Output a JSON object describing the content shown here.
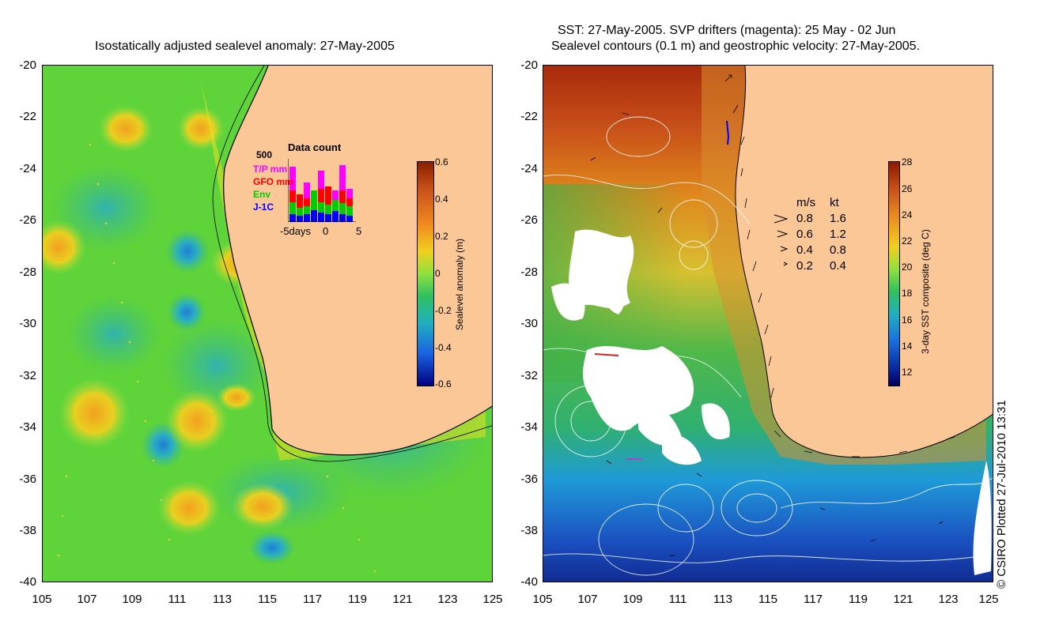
{
  "left_panel": {
    "title": "Isostatically adjusted sealevel anomaly: 27-May-2005",
    "y_ticks": [
      "-20",
      "-22",
      "-24",
      "-26",
      "-28",
      "-30",
      "-32",
      "-34",
      "-36",
      "-38",
      "-40"
    ],
    "x_ticks": [
      "105",
      "107",
      "109",
      "111",
      "113",
      "115",
      "117",
      "119",
      "121",
      "123",
      "125"
    ],
    "colorbar": {
      "label": "Sealevel anomaly (m)",
      "ticks": [
        "0.6",
        "0.4",
        "0.2",
        "0",
        "-0.2",
        "-0.4",
        "-0.6"
      ]
    },
    "data_count": {
      "title": "Data count",
      "max_label": "500",
      "x_labels": [
        "-5days",
        "0",
        "5"
      ],
      "legend": [
        {
          "label": "T/P mm",
          "color": "#ff00ff"
        },
        {
          "label": "GFO mm",
          "color": "#ff0000"
        },
        {
          "label": "Env",
          "color": "#00cc00"
        },
        {
          "label": "J-1C",
          "color": "#0000ff"
        }
      ]
    }
  },
  "right_panel": {
    "title_line1": "SST: 27-May-2005. SVP drifters (magenta): 25 May - 02 Jun",
    "title_line2": "Sealevel contours (0.1 m) and geostrophic velocity: 27-May-2005.",
    "y_ticks": [
      "-20",
      "-22",
      "-24",
      "-26",
      "-28",
      "-30",
      "-32",
      "-34",
      "-36",
      "-38",
      "-40"
    ],
    "x_ticks": [
      "105",
      "107",
      "109",
      "111",
      "113",
      "115",
      "117",
      "119",
      "121",
      "123",
      "125"
    ],
    "colorbar": {
      "label": "3-day SST composite (deg C)",
      "ticks": [
        "28",
        "26",
        "24",
        "22",
        "20",
        "18",
        "16",
        "14",
        "12"
      ]
    },
    "velocity_legend": {
      "header_ms": "m/s",
      "header_kt": "kt",
      "rows": [
        {
          "ms": "0.8",
          "kt": "1.6"
        },
        {
          "ms": "0.6",
          "kt": "1.2"
        },
        {
          "ms": "0.4",
          "kt": "0.8"
        },
        {
          "ms": "0.2",
          "kt": "0.4"
        }
      ]
    },
    "credit": "© CSIRO Plotted 27-Jul-2010 13:31"
  },
  "colors": {
    "land": "#fbc797",
    "sla_mid": "#5fd33a",
    "sst_warm": "#c8501a",
    "sst_cool": "#1f8fd0"
  }
}
